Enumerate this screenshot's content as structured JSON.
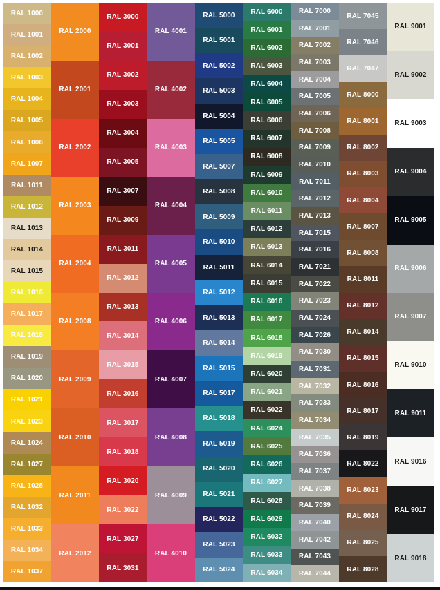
{
  "columns": [
    {
      "swatches": [
        {
          "label": "RAL 1000",
          "color": "#CDBA88"
        },
        {
          "label": "RAL 1001",
          "color": "#D0AE80"
        },
        {
          "label": "RAL 1002",
          "color": "#D8B16E"
        },
        {
          "label": "RAL 1003",
          "color": "#F2C72E"
        },
        {
          "label": "RAL 1004",
          "color": "#E8B41E"
        },
        {
          "label": "RAL 1005",
          "color": "#DCA720"
        },
        {
          "label": "RAL 1006",
          "color": "#E9AB2C"
        },
        {
          "label": "RAL 1007",
          "color": "#F1A51B"
        },
        {
          "label": "RAL 1011",
          "color": "#AF8A62"
        },
        {
          "label": "RAL 1012",
          "color": "#C9B53A"
        },
        {
          "label": "RAL 1013",
          "color": "#E6DCC8",
          "dark": true
        },
        {
          "label": "RAL 1014",
          "color": "#E2C99E",
          "dark": true
        },
        {
          "label": "RAL 1015",
          "color": "#E8D7B8",
          "dark": true
        },
        {
          "label": "RAL 1016",
          "color": "#EEEA36"
        },
        {
          "label": "RAL 1017",
          "color": "#F5AE5C"
        },
        {
          "label": "RAL 1018",
          "color": "#F8EA43"
        },
        {
          "label": "RAL 1019",
          "color": "#9E8E75"
        },
        {
          "label": "RAL 1020",
          "color": "#999681"
        },
        {
          "label": "RAL 1021",
          "color": "#F9D100"
        },
        {
          "label": "RAL 1023",
          "color": "#F9D212"
        },
        {
          "label": "RAL 1024",
          "color": "#B08A55"
        },
        {
          "label": "RAL 1027",
          "color": "#9A862E"
        },
        {
          "label": "RAL 1028",
          "color": "#F8B416"
        },
        {
          "label": "RAL 1032",
          "color": "#E2A62E"
        },
        {
          "label": "RAL 1033",
          "color": "#F6AE2E"
        },
        {
          "label": "RAL 1034",
          "color": "#F3B158"
        },
        {
          "label": "RAL 1037",
          "color": "#F0A330"
        }
      ]
    },
    {
      "swatches": [
        {
          "label": "RAL 2000",
          "color": "#F28C21"
        },
        {
          "label": "RAL 2001",
          "color": "#C4481E"
        },
        {
          "label": "RAL 2002",
          "color": "#E8402A"
        },
        {
          "label": "RAL 2003",
          "color": "#F5871F"
        },
        {
          "label": "RAL 2004",
          "color": "#F06C23"
        },
        {
          "label": "RAL 2008",
          "color": "#F37E23"
        },
        {
          "label": "RAL 2009",
          "color": "#E3652A"
        },
        {
          "label": "RAL 2010",
          "color": "#DB5F22"
        },
        {
          "label": "RAL 2011",
          "color": "#F2891F"
        },
        {
          "label": "RAL 2012",
          "color": "#F1845E"
        }
      ]
    },
    {
      "swatches": [
        {
          "label": "RAL 3000",
          "color": "#C81A23"
        },
        {
          "label": "RAL 3001",
          "color": "#B81E33"
        },
        {
          "label": "RAL 3002",
          "color": "#BE1C2B"
        },
        {
          "label": "RAL 3003",
          "color": "#9B0E1E"
        },
        {
          "label": "RAL 3004",
          "color": "#6D0B12"
        },
        {
          "label": "RAL 3005",
          "color": "#7D1424"
        },
        {
          "label": "RAL 3007",
          "color": "#3A0E10"
        },
        {
          "label": "RAL 3009",
          "color": "#6A1B15"
        },
        {
          "label": "RAL 3011",
          "color": "#8A1A1E"
        },
        {
          "label": "RAL 3012",
          "color": "#D58A72"
        },
        {
          "label": "RAL 3013",
          "color": "#A83024"
        },
        {
          "label": "RAL 3014",
          "color": "#DC6F7A"
        },
        {
          "label": "RAL 3015",
          "color": "#E89DA6"
        },
        {
          "label": "RAL 3016",
          "color": "#C23E2E"
        },
        {
          "label": "RAL 3017",
          "color": "#DC5462"
        },
        {
          "label": "RAL 3018",
          "color": "#D83A4C"
        },
        {
          "label": "RAL 3020",
          "color": "#D41C22"
        },
        {
          "label": "RAL 3022",
          "color": "#EE7D5C"
        },
        {
          "label": "RAL 3027",
          "color": "#C01436"
        },
        {
          "label": "RAL 3031",
          "color": "#A91D2E"
        }
      ]
    },
    {
      "swatches": [
        {
          "label": "RAL 4001",
          "color": "#725997"
        },
        {
          "label": "RAL 4002",
          "color": "#992A3C"
        },
        {
          "label": "RAL 4003",
          "color": "#DC6BA0"
        },
        {
          "label": "RAL 4004",
          "color": "#6B1F4B"
        },
        {
          "label": "RAL 4005",
          "color": "#7A3A8F"
        },
        {
          "label": "RAL 4006",
          "color": "#8A2A8D"
        },
        {
          "label": "RAL 4007",
          "color": "#3F0E47"
        },
        {
          "label": "RAL 4008",
          "color": "#783F91"
        },
        {
          "label": "RAL 4009",
          "color": "#9C8F9A"
        },
        {
          "label": "RAL 4010",
          "color": "#DB3F7A"
        }
      ]
    },
    {
      "swatches": [
        {
          "label": "RAL 5000",
          "color": "#1F4B75"
        },
        {
          "label": "RAL 5001",
          "color": "#1A4A5E"
        },
        {
          "label": "RAL 5002",
          "color": "#213A85"
        },
        {
          "label": "RAL 5003",
          "color": "#1D3561"
        },
        {
          "label": "RAL 5004",
          "color": "#12182C"
        },
        {
          "label": "RAL 5005",
          "color": "#1955A0"
        },
        {
          "label": "RAL 5007",
          "color": "#38628C"
        },
        {
          "label": "RAL 5008",
          "color": "#273440"
        },
        {
          "label": "RAL 5009",
          "color": "#2F5E7E"
        },
        {
          "label": "RAL 5010",
          "color": "#1A4C83"
        },
        {
          "label": "RAL 5011",
          "color": "#15223A"
        },
        {
          "label": "RAL 5012",
          "color": "#2A86CC"
        },
        {
          "label": "RAL 5013",
          "color": "#1D2F55"
        },
        {
          "label": "RAL 5014",
          "color": "#61799E"
        },
        {
          "label": "RAL 5015",
          "color": "#1C75BA"
        },
        {
          "label": "RAL 5017",
          "color": "#155A9D"
        },
        {
          "label": "RAL 5018",
          "color": "#26908F"
        },
        {
          "label": "RAL 5019",
          "color": "#1D5A8E"
        },
        {
          "label": "RAL 5020",
          "color": "#1A6670"
        },
        {
          "label": "RAL 5021",
          "color": "#1B7779"
        },
        {
          "label": "RAL 5022",
          "color": "#25255E"
        },
        {
          "label": "RAL 5023",
          "color": "#45679A"
        },
        {
          "label": "RAL 5024",
          "color": "#5F8FB0"
        }
      ]
    },
    {
      "swatches": [
        {
          "label": "RAL 6000",
          "color": "#2B7A6C"
        },
        {
          "label": "RAL 6001",
          "color": "#2A7A45"
        },
        {
          "label": "RAL 6002",
          "color": "#2C6A36"
        },
        {
          "label": "RAL 6003",
          "color": "#4B5640"
        },
        {
          "label": "RAL 6004",
          "color": "#0D4A45"
        },
        {
          "label": "RAL 6005",
          "color": "#0D4A3A"
        },
        {
          "label": "RAL 6006",
          "color": "#3A3E35"
        },
        {
          "label": "RAL 6007",
          "color": "#23342A"
        },
        {
          "label": "RAL 6008",
          "color": "#2E2A22"
        },
        {
          "label": "RAL 6009",
          "color": "#1F3A2F"
        },
        {
          "label": "RAL 6010",
          "color": "#3F7A3E"
        },
        {
          "label": "RAL 6011",
          "color": "#6A8D63"
        },
        {
          "label": "RAL 6012",
          "color": "#2C3E3A"
        },
        {
          "label": "RAL 6013",
          "color": "#7D7E5A"
        },
        {
          "label": "RAL 6014",
          "color": "#474535"
        },
        {
          "label": "RAL 6015",
          "color": "#3B3D34"
        },
        {
          "label": "RAL 6016",
          "color": "#1B7A52"
        },
        {
          "label": "RAL 6017",
          "color": "#3F8A3F"
        },
        {
          "label": "RAL 6018",
          "color": "#4FA44A"
        },
        {
          "label": "RAL 6019",
          "color": "#B3D5A5"
        },
        {
          "label": "RAL 6020",
          "color": "#2F3F33"
        },
        {
          "label": "RAL 6021",
          "color": "#89A586"
        },
        {
          "label": "RAL 6022",
          "color": "#39342A"
        },
        {
          "label": "RAL 6024",
          "color": "#2D8F5C"
        },
        {
          "label": "RAL 6025",
          "color": "#527A3E"
        },
        {
          "label": "RAL 6026",
          "color": "#136A5A"
        },
        {
          "label": "RAL 6027",
          "color": "#73BBBE"
        },
        {
          "label": "RAL 6028",
          "color": "#2F5A4A"
        },
        {
          "label": "RAL 6029",
          "color": "#117A4A"
        },
        {
          "label": "RAL 6032",
          "color": "#1F8A5F"
        },
        {
          "label": "RAL 6033",
          "color": "#3E8D84"
        },
        {
          "label": "RAL 6034",
          "color": "#7FB0B5"
        }
      ]
    },
    {
      "swatches": [
        {
          "label": "RAL 7000",
          "color": "#7B8B98"
        },
        {
          "label": "RAL 7001",
          "color": "#909DA2"
        },
        {
          "label": "RAL 7002",
          "color": "#857D66"
        },
        {
          "label": "RAL 7003",
          "color": "#7B786A"
        },
        {
          "label": "RAL 7004",
          "color": "#9C9C9E"
        },
        {
          "label": "RAL 7005",
          "color": "#6C7274"
        },
        {
          "label": "RAL 7006",
          "color": "#6F6556"
        },
        {
          "label": "RAL 7008",
          "color": "#6E5D3F"
        },
        {
          "label": "RAL 7009",
          "color": "#5A5F55"
        },
        {
          "label": "RAL 7010",
          "color": "#585D58"
        },
        {
          "label": "RAL 7011",
          "color": "#545E66"
        },
        {
          "label": "RAL 7012",
          "color": "#5B6466"
        },
        {
          "label": "RAL 7013",
          "color": "#5A5444"
        },
        {
          "label": "RAL 7015",
          "color": "#4F5660"
        },
        {
          "label": "RAL 7016",
          "color": "#3A4046"
        },
        {
          "label": "RAL 7021",
          "color": "#2D3134"
        },
        {
          "label": "RAL 7022",
          "color": "#4B4B45"
        },
        {
          "label": "RAL 7023",
          "color": "#828478"
        },
        {
          "label": "RAL 7024",
          "color": "#4B5054"
        },
        {
          "label": "RAL 7026",
          "color": "#39474D"
        },
        {
          "label": "RAL 7030",
          "color": "#928E85"
        },
        {
          "label": "RAL 7031",
          "color": "#5D6972"
        },
        {
          "label": "RAL 7032",
          "color": "#B9B6A4"
        },
        {
          "label": "RAL 7033",
          "color": "#838A7E"
        },
        {
          "label": "RAL 7034",
          "color": "#928D72"
        },
        {
          "label": "RAL 7035",
          "color": "#C5CBCB"
        },
        {
          "label": "RAL 7036",
          "color": "#969292"
        },
        {
          "label": "RAL 7037",
          "color": "#7E8384"
        },
        {
          "label": "RAL 7038",
          "color": "#B0B2AA"
        },
        {
          "label": "RAL 7039",
          "color": "#6C6963"
        },
        {
          "label": "RAL 7040",
          "color": "#9BA1A6"
        },
        {
          "label": "RAL 7042",
          "color": "#8F9594"
        },
        {
          "label": "RAL 7043",
          "color": "#4F5452"
        },
        {
          "label": "RAL 7044",
          "color": "#B8B5AB"
        }
      ]
    },
    {
      "swatches": [
        {
          "label": "RAL 7045",
          "color": "#8F9699"
        },
        {
          "label": "RAL 7046",
          "color": "#7B8288"
        },
        {
          "label": "RAL 7047",
          "color": "#C8C8C6"
        },
        {
          "label": "RAL 8000",
          "color": "#8B6A3D"
        },
        {
          "label": "RAL 8001",
          "color": "#9F6730"
        },
        {
          "label": "RAL 8002",
          "color": "#6F4536"
        },
        {
          "label": "RAL 8003",
          "color": "#7F4E31"
        },
        {
          "label": "RAL 8004",
          "color": "#8E4A36"
        },
        {
          "label": "RAL 8007",
          "color": "#6E4A2F"
        },
        {
          "label": "RAL 8008",
          "color": "#725033"
        },
        {
          "label": "RAL 8011",
          "color": "#5A3B27"
        },
        {
          "label": "RAL 8012",
          "color": "#63302A"
        },
        {
          "label": "RAL 8014",
          "color": "#4A3A2C"
        },
        {
          "label": "RAL 8015",
          "color": "#5F3029"
        },
        {
          "label": "RAL 8016",
          "color": "#4C2D23"
        },
        {
          "label": "RAL 8017",
          "color": "#45302A"
        },
        {
          "label": "RAL 8019",
          "color": "#3B3535"
        },
        {
          "label": "RAL 8022",
          "color": "#18171A"
        },
        {
          "label": "RAL 8023",
          "color": "#A0613A"
        },
        {
          "label": "RAL 8024",
          "color": "#7A5A44"
        },
        {
          "label": "RAL 8025",
          "color": "#75604F"
        },
        {
          "label": "RAL 8028",
          "color": "#4D3A2B"
        }
      ]
    },
    {
      "swatches": [
        {
          "label": "RAL 9001",
          "color": "#E8E7D7",
          "dark": true
        },
        {
          "label": "RAL 9002",
          "color": "#D8D8D0",
          "dark": true
        },
        {
          "label": "RAL 9003",
          "color": "#FFFFFF",
          "dark": true
        },
        {
          "label": "RAL 9004",
          "color": "#2A2C2E"
        },
        {
          "label": "RAL 9005",
          "color": "#0B0D14"
        },
        {
          "label": "RAL 9006",
          "color": "#A4A8A8"
        },
        {
          "label": "RAL 9007",
          "color": "#8E8E8A"
        },
        {
          "label": "RAL 9010",
          "color": "#F9F9F1",
          "dark": true
        },
        {
          "label": "RAL 9011",
          "color": "#1B2125"
        },
        {
          "label": "RAL 9016",
          "color": "#F7F8F5",
          "dark": true
        },
        {
          "label": "RAL 9017",
          "color": "#17181A"
        },
        {
          "label": "RAL 9018",
          "color": "#CDD2D2",
          "dark": true
        }
      ]
    }
  ]
}
